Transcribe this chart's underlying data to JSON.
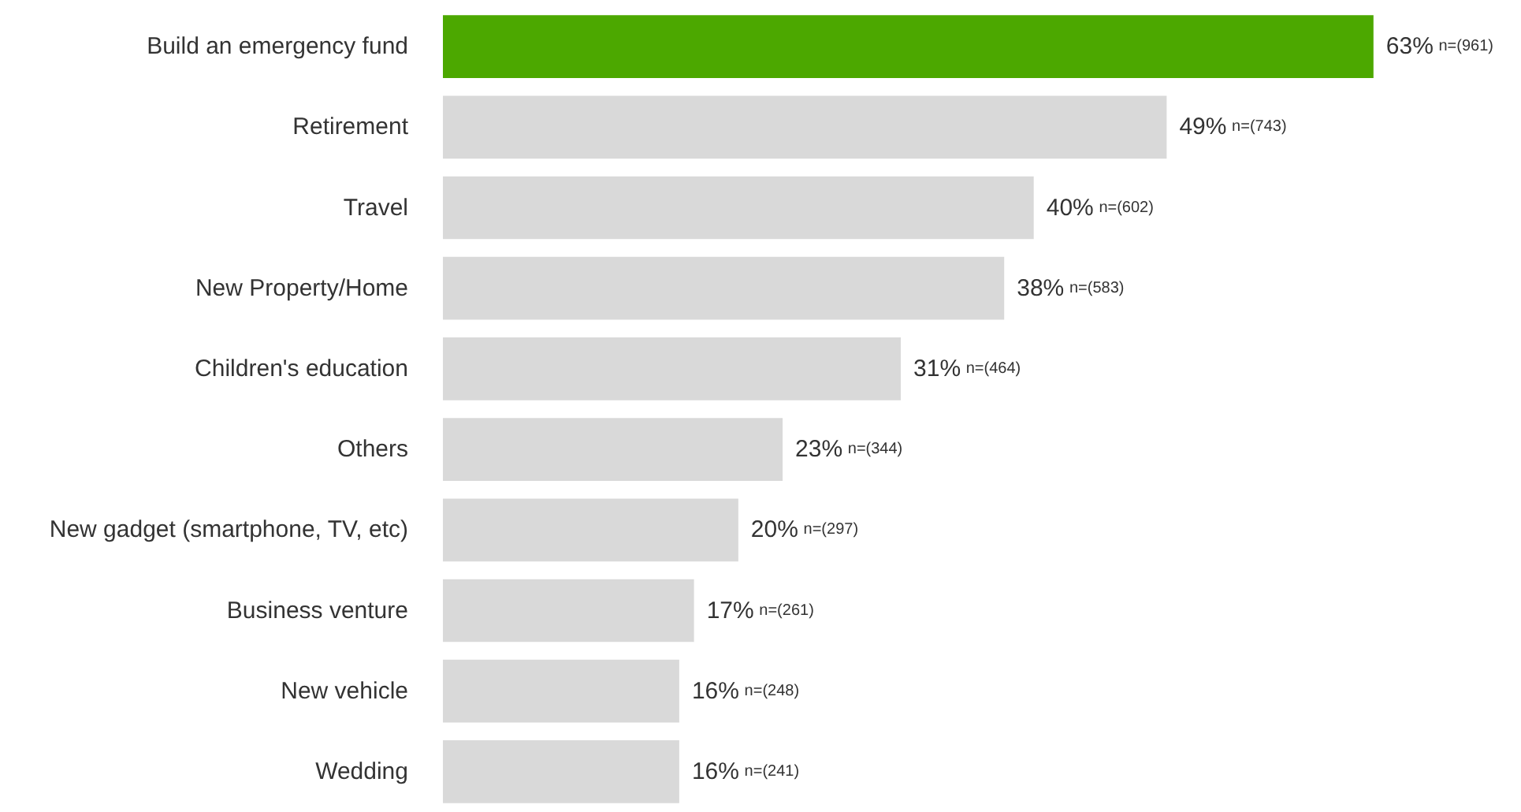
{
  "chart_data": {
    "type": "bar",
    "orientation": "horizontal",
    "categories": [
      "Build an emergency fund",
      "Retirement",
      "Travel",
      "New Property/Home",
      "Children's education",
      "Others",
      "New gadget (smartphone, TV, etc)",
      "Business venture",
      "New vehicle",
      "Wedding"
    ],
    "values": [
      63,
      49,
      40,
      38,
      31,
      23,
      20,
      17,
      16,
      16
    ],
    "value_labels": [
      "63% n=(961)",
      "49% n=(743)",
      "40% n=(602)",
      "38% n=(583)",
      "31% n=(464)",
      "23% n=(344)",
      "20% n=(297)",
      "17% n=(261)",
      "16% n=(248)",
      "16% n=(241)"
    ],
    "colors": [
      "#4ca800",
      "#d9d9d9",
      "#d9d9d9",
      "#d9d9d9",
      "#d9d9d9",
      "#d9d9d9",
      "#d9d9d9",
      "#d9d9d9",
      "#d9d9d9",
      "#d9d9d9"
    ]
  }
}
